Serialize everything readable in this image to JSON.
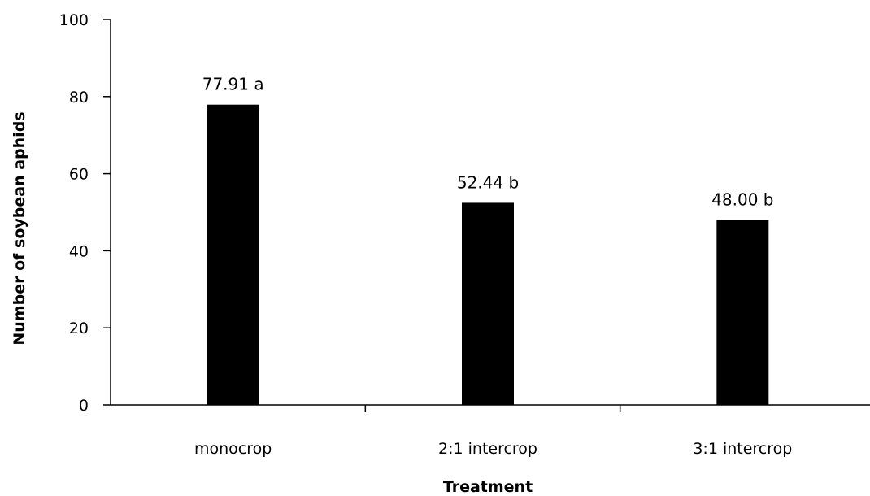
{
  "chart_data": {
    "type": "bar",
    "title": "",
    "xlabel": "Treatment",
    "ylabel": "Number of soybean aphids",
    "categories": [
      "monocrop",
      "2:1 intercrop",
      "3:1 intercrop"
    ],
    "values": [
      77.91,
      52.44,
      48.0
    ],
    "data_labels": [
      "77.91 a",
      "52.44 b",
      "48.00 b"
    ],
    "ylim": [
      0,
      100
    ],
    "yticks": [
      0,
      20,
      40,
      60,
      80,
      100
    ],
    "ytick_labels": [
      "0",
      "20",
      "40",
      "60",
      "80",
      "100"
    ],
    "grid": false,
    "legend": "none",
    "bar_color": "#000000",
    "axis_color": "#000000"
  }
}
